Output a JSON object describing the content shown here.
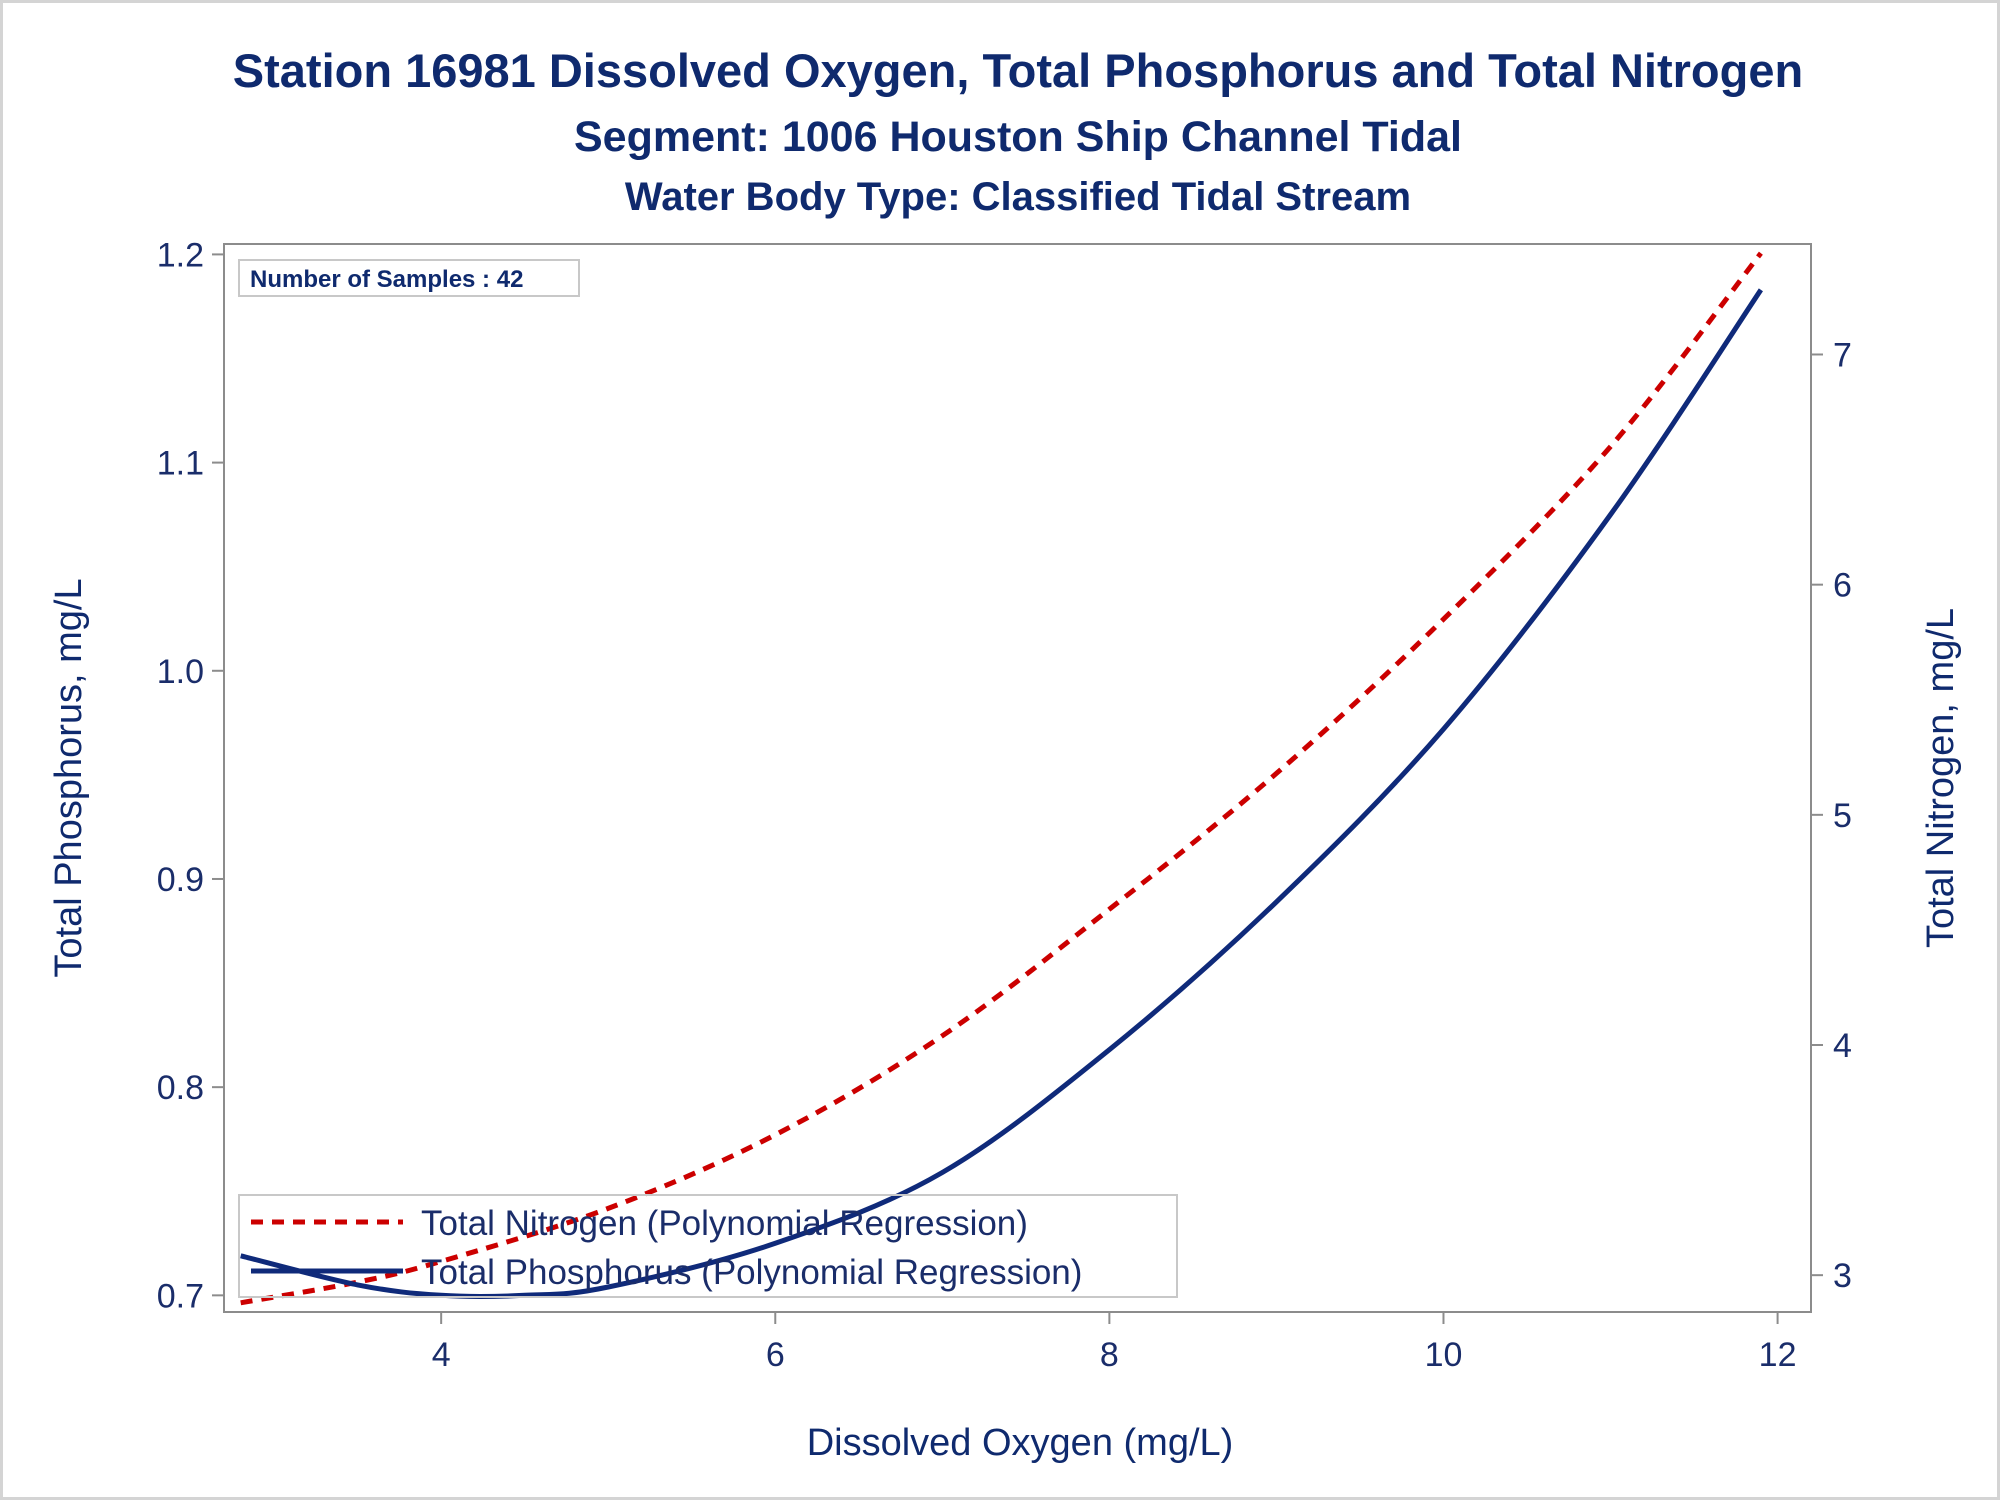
{
  "chart_data": {
    "type": "line",
    "title": "Station 16981  Dissolved Oxygen, Total Phosphorus and Total Nitrogen",
    "subtitle": "Segment: 1006  Houston Ship Channel Tidal",
    "subtitle2": "Water Body Type: Classified Tidal Stream",
    "xlabel": "Dissolved Oxygen (mg/L)",
    "ylabel": "Total Phosphorus, mg/L",
    "y2label": "Total Nitrogen, mg/L",
    "xlim": [
      2.7,
      12.2
    ],
    "ylim": [
      0.692,
      1.205
    ],
    "y2lim": [
      2.84,
      7.48
    ],
    "x_ticks": [
      4,
      6,
      8,
      10,
      12
    ],
    "y_ticks": [
      0.7,
      0.8,
      0.9,
      1.0,
      1.1,
      1.2
    ],
    "y2_ticks": [
      3,
      4,
      5,
      6,
      7
    ],
    "x_tick_labels": [
      "4",
      "6",
      "8",
      "10",
      "12"
    ],
    "y_tick_labels": [
      "0.7",
      "0.8",
      "0.9",
      "1.0",
      "1.1",
      "1.2"
    ],
    "y2_tick_labels": [
      "3",
      "4",
      "5",
      "6",
      "7"
    ],
    "annotation": "Number of Samples : 42",
    "grid": false,
    "legend_position": "bottom-left",
    "series": [
      {
        "name": "Total Nitrogen (Polynomial Regression)",
        "axis": "y2",
        "color": "#cc0000",
        "style": "dashed",
        "x": [
          2.8,
          3.5,
          4.0,
          5.0,
          6.0,
          7.0,
          8.0,
          9.0,
          10.0,
          11.0,
          11.9
        ],
        "values": [
          2.88,
          2.97,
          3.06,
          3.29,
          3.61,
          4.04,
          4.59,
          5.18,
          5.85,
          6.6,
          7.44
        ]
      },
      {
        "name": "Total Phosphorus (Polynomial Regression)",
        "axis": "y",
        "color": "#0f2a7a",
        "style": "solid",
        "x": [
          2.8,
          3.5,
          4.0,
          4.5,
          5.0,
          6.0,
          7.0,
          8.0,
          9.0,
          10.0,
          11.0,
          11.9
        ],
        "values": [
          0.719,
          0.705,
          0.7,
          0.7,
          0.704,
          0.725,
          0.759,
          0.818,
          0.889,
          0.972,
          1.075,
          1.183
        ]
      }
    ]
  },
  "colors": {
    "title": "#0f2a6e",
    "axis": "#8c8c8c",
    "nitrogen": "#cc0000",
    "phosphorus": "#0f2a7a"
  }
}
